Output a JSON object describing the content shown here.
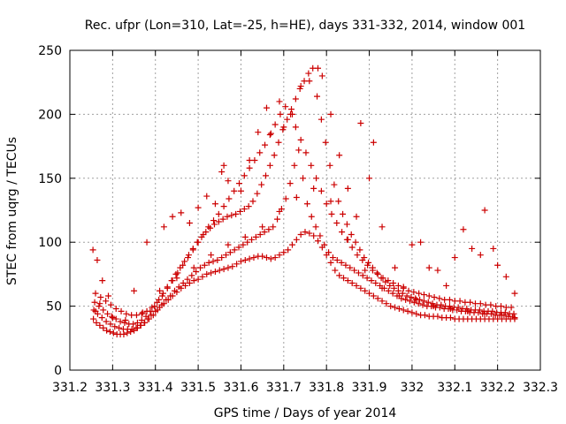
{
  "chart_data": {
    "type": "scatter",
    "title": "Rec. ufpr (Lon=310, Lat=-25, h=HE), days 331-332, 2014, window 001",
    "xlabel": "GPS time / Days of year 2014",
    "ylabel": "STEC from uqrg / TECUs",
    "xlim": [
      331.2,
      332.3
    ],
    "ylim": [
      0,
      250
    ],
    "xticks": [
      "331.2",
      "331.3",
      "331.4",
      "331.5",
      "331.6",
      "331.7",
      "331.8",
      "331.9",
      "332",
      "332.1",
      "332.2",
      "332.3"
    ],
    "yticks": [
      "0",
      "50",
      "100",
      "150",
      "200",
      "250"
    ],
    "grid": true,
    "marker": "plus",
    "color": "#cc0000",
    "series": [
      {
        "x": [
          331.255,
          331.262,
          331.27,
          331.278,
          331.286,
          331.294,
          331.302,
          331.31,
          331.318,
          331.326,
          331.334,
          331.342,
          331.35,
          331.358,
          331.366,
          331.374,
          331.382,
          331.39,
          331.4,
          331.41,
          331.42,
          331.43,
          331.44,
          331.45,
          331.46,
          331.47,
          331.48,
          331.49,
          331.5,
          331.51,
          331.52,
          331.53,
          331.54,
          331.55,
          331.56,
          331.57,
          331.58,
          331.59,
          331.6,
          331.61,
          331.62,
          331.63,
          331.64,
          331.65,
          331.66,
          331.67,
          331.68,
          331.69,
          331.7,
          331.71,
          331.72,
          331.73,
          331.74,
          331.75,
          331.76,
          331.77,
          331.78,
          331.79,
          331.8,
          331.81,
          331.82,
          331.83,
          331.84,
          331.85,
          331.86,
          331.87,
          331.88,
          331.89,
          331.9,
          331.91,
          331.92,
          331.93,
          331.94,
          331.95,
          331.96,
          331.97,
          331.98,
          331.99,
          332.0,
          332.01,
          332.02,
          332.03,
          332.04,
          332.05,
          332.06,
          332.07,
          332.08,
          332.09,
          332.1,
          332.11,
          332.12,
          332.13,
          332.14,
          332.15,
          332.16,
          332.17,
          332.18,
          332.19,
          332.2,
          332.21,
          332.22,
          332.23,
          332.24
        ],
        "y": [
          40,
          37,
          35,
          33,
          31,
          30,
          29,
          28,
          28,
          28,
          29,
          30,
          31,
          33,
          35,
          37,
          40,
          43,
          46,
          49,
          52,
          55,
          58,
          61,
          64,
          66,
          68,
          70,
          71,
          73,
          75,
          76,
          77,
          78,
          79,
          80,
          81,
          83,
          85,
          86,
          87,
          88,
          89,
          89,
          88,
          87,
          88,
          90,
          92,
          94,
          98,
          102,
          106,
          108,
          107,
          105,
          101,
          96,
          90,
          84,
          78,
          74,
          72,
          70,
          68,
          66,
          64,
          62,
          60,
          58,
          56,
          54,
          52,
          50,
          49,
          48,
          47,
          46,
          45,
          44,
          43,
          43,
          42,
          42,
          42,
          41,
          41,
          41,
          40,
          40,
          40,
          40,
          40,
          40,
          40,
          40,
          40,
          40,
          40,
          40,
          40,
          40,
          40
        ]
      },
      {
        "x": [
          331.256,
          331.265,
          331.275,
          331.285,
          331.295,
          331.305,
          331.315,
          331.325,
          331.335,
          331.345,
          331.355,
          331.365,
          331.375,
          331.385,
          331.395,
          331.405,
          331.415,
          331.425,
          331.435,
          331.445,
          331.455,
          331.465,
          331.475,
          331.485,
          331.495,
          331.505,
          331.515,
          331.525,
          331.535,
          331.545,
          331.555,
          331.565,
          331.575,
          331.585,
          331.595,
          331.605,
          331.615,
          331.625,
          331.635,
          331.645,
          331.655,
          331.665,
          331.675,
          331.685,
          331.695,
          331.705,
          331.715,
          331.725,
          331.735,
          331.745,
          331.755,
          331.765,
          331.775,
          331.785,
          331.795,
          331.805,
          331.815,
          331.825,
          331.835,
          331.845,
          331.855,
          331.865,
          331.875,
          331.885,
          331.895,
          331.905,
          331.915,
          331.925,
          331.935,
          331.945,
          331.955,
          331.965,
          331.975,
          331.985,
          331.995,
          332.005,
          332.015,
          332.025,
          332.035,
          332.045,
          332.055,
          332.065,
          332.075,
          332.085,
          332.095,
          332.105,
          332.115,
          332.125,
          332.135,
          332.145,
          332.155,
          332.165,
          332.175,
          332.185,
          332.195,
          332.205,
          332.215,
          332.225,
          332.235
        ],
        "y": [
          47,
          44,
          41,
          38,
          36,
          34,
          33,
          32,
          32,
          32,
          33,
          35,
          37,
          40,
          43,
          47,
          51,
          55,
          58,
          62,
          65,
          68,
          71,
          74,
          77,
          80,
          82,
          84,
          85,
          86,
          88,
          90,
          92,
          94,
          96,
          98,
          100,
          102,
          104,
          106,
          108,
          110,
          112,
          118,
          126,
          134,
          146,
          160,
          172,
          150,
          130,
          120,
          112,
          105,
          98,
          92,
          88,
          86,
          84,
          82,
          80,
          78,
          76,
          74,
          72,
          70,
          68,
          66,
          64,
          62,
          60,
          58,
          56,
          55,
          54,
          53,
          52,
          51,
          50,
          50,
          49,
          49,
          48,
          48,
          47,
          47,
          46,
          46,
          45,
          45,
          45,
          44,
          44,
          44,
          43,
          43,
          43,
          42,
          42
        ]
      },
      {
        "x": [
          331.258,
          331.268,
          331.278,
          331.288,
          331.298,
          331.308,
          331.318,
          331.328,
          331.338,
          331.348,
          331.358,
          331.368,
          331.378,
          331.388,
          331.398,
          331.408,
          331.418,
          331.428,
          331.438,
          331.448,
          331.458,
          331.468,
          331.478,
          331.488,
          331.498,
          331.508,
          331.518,
          331.528,
          331.538,
          331.548,
          331.558,
          331.568,
          331.578,
          331.588,
          331.598,
          331.608,
          331.618,
          331.628,
          331.638,
          331.648,
          331.658,
          331.668,
          331.678,
          331.688,
          331.698,
          331.708,
          331.718,
          331.728,
          331.738,
          331.748,
          331.758,
          331.768,
          331.778,
          331.788,
          331.798,
          331.808,
          331.818,
          331.828,
          331.838,
          331.848,
          331.858,
          331.868,
          331.878,
          331.888,
          331.898,
          331.908,
          331.918,
          331.928,
          331.938,
          331.948,
          331.958,
          331.968,
          331.978,
          331.988,
          331.998,
          332.008,
          332.018,
          332.028,
          332.038,
          332.048,
          332.058,
          332.068,
          332.078,
          332.088,
          332.098,
          332.108,
          332.118,
          332.128,
          332.138,
          332.148,
          332.158,
          332.168,
          332.178,
          332.188,
          332.198,
          332.208,
          332.218,
          332.228,
          332.238
        ],
        "y": [
          53,
          50,
          47,
          44,
          42,
          40,
          38,
          37,
          36,
          36,
          37,
          39,
          42,
          46,
          50,
          55,
          60,
          65,
          70,
          75,
          80,
          85,
          90,
          95,
          100,
          104,
          108,
          111,
          114,
          116,
          118,
          120,
          121,
          122,
          124,
          126,
          128,
          132,
          138,
          145,
          152,
          160,
          168,
          178,
          188,
          196,
          204,
          212,
          220,
          226,
          232,
          236,
          214,
          196,
          178,
          160,
          145,
          132,
          122,
          114,
          106,
          100,
          94,
          88,
          84,
          80,
          76,
          72,
          69,
          66,
          64,
          62,
          60,
          58,
          57,
          56,
          55,
          54,
          53,
          52,
          51,
          51,
          50,
          50,
          49,
          49,
          48,
          48,
          47,
          47,
          47,
          46,
          46,
          46,
          45,
          45,
          45,
          44,
          44
        ]
      },
      {
        "x": [
          331.26,
          331.272,
          331.284,
          331.296,
          331.308,
          331.32,
          331.332,
          331.344,
          331.356,
          331.368,
          331.38,
          331.392,
          331.404,
          331.416,
          331.428,
          331.44,
          331.452,
          331.464,
          331.476,
          331.488,
          331.5,
          331.512,
          331.524,
          331.536,
          331.548,
          331.56,
          331.572,
          331.584,
          331.596,
          331.608,
          331.62,
          331.632,
          331.644,
          331.656,
          331.668,
          331.68,
          331.692,
          331.704,
          331.716,
          331.728,
          331.74,
          331.752,
          331.764,
          331.776,
          331.788,
          331.8,
          331.812,
          331.824,
          331.836,
          331.848,
          331.86,
          331.872,
          331.884,
          331.896,
          331.908,
          331.92,
          331.932,
          331.944,
          331.956,
          331.968,
          331.98,
          331.992,
          332.004,
          332.016,
          332.028,
          332.04,
          332.052,
          332.064,
          332.076,
          332.088,
          332.1,
          332.112,
          332.124,
          332.136,
          332.148,
          332.16,
          332.172,
          332.184,
          332.196,
          332.208,
          332.22,
          332.232
        ],
        "y": [
          60,
          57,
          54,
          51,
          48,
          46,
          44,
          43,
          43,
          44,
          46,
          49,
          53,
          58,
          64,
          70,
          76,
          82,
          88,
          94,
          100,
          106,
          112,
          117,
          122,
          128,
          134,
          140,
          146,
          152,
          158,
          164,
          170,
          176,
          184,
          192,
          200,
          206,
          200,
          190,
          180,
          170,
          160,
          150,
          140,
          130,
          122,
          115,
          108,
          102,
          96,
          90,
          86,
          82,
          78,
          75,
          72,
          70,
          68,
          66,
          64,
          62,
          61,
          60,
          59,
          58,
          57,
          56,
          55,
          55,
          54,
          54,
          53,
          53,
          52,
          52,
          51,
          51,
          50,
          50,
          49,
          49
        ]
      },
      {
        "x": [
          331.254,
          331.264,
          331.276,
          331.29,
          331.35,
          331.38,
          331.42,
          331.44,
          331.46,
          331.48,
          331.5,
          331.52,
          331.54,
          331.555,
          331.56,
          331.57,
          331.6,
          331.62,
          331.64,
          331.66,
          331.67,
          331.69,
          331.7,
          331.72,
          331.74,
          331.76,
          331.78,
          331.79,
          331.81,
          331.83,
          331.85,
          331.87,
          331.88,
          331.9,
          331.91,
          331.93,
          331.96,
          331.98,
          332.0,
          332.02,
          332.04,
          332.06,
          332.08,
          332.1,
          332.12,
          332.14,
          332.16,
          332.17,
          332.19,
          332.2,
          332.22,
          332.24
        ],
        "y": [
          94,
          86,
          70,
          58,
          62,
          100,
          112,
          120,
          123,
          115,
          127,
          136,
          130,
          155,
          160,
          148,
          140,
          164,
          186,
          205,
          185,
          210,
          190,
          200,
          222,
          226,
          236,
          230,
          200,
          168,
          142,
          120,
          193,
          150,
          178,
          112,
          80,
          65,
          98,
          100,
          80,
          78,
          66,
          88,
          110,
          95,
          90,
          125,
          95,
          82,
          73,
          60
        ]
      },
      {
        "x": [
          331.26,
          331.27,
          331.3,
          331.33,
          331.37,
          331.41,
          331.45,
          331.49,
          331.53,
          331.57,
          331.61,
          331.65,
          331.69,
          331.73,
          331.77,
          331.81,
          331.85,
          331.89,
          331.93,
          331.97,
          332.01,
          332.05,
          332.09,
          332.13,
          332.17,
          332.21,
          332.24
        ],
        "y": [
          46,
          52,
          41,
          39,
          45,
          62,
          72,
          80,
          90,
          98,
          104,
          112,
          124,
          135,
          142,
          132,
          102,
          78,
          64,
          58,
          55,
          50,
          48,
          46,
          44,
          43,
          41
        ]
      }
    ]
  }
}
